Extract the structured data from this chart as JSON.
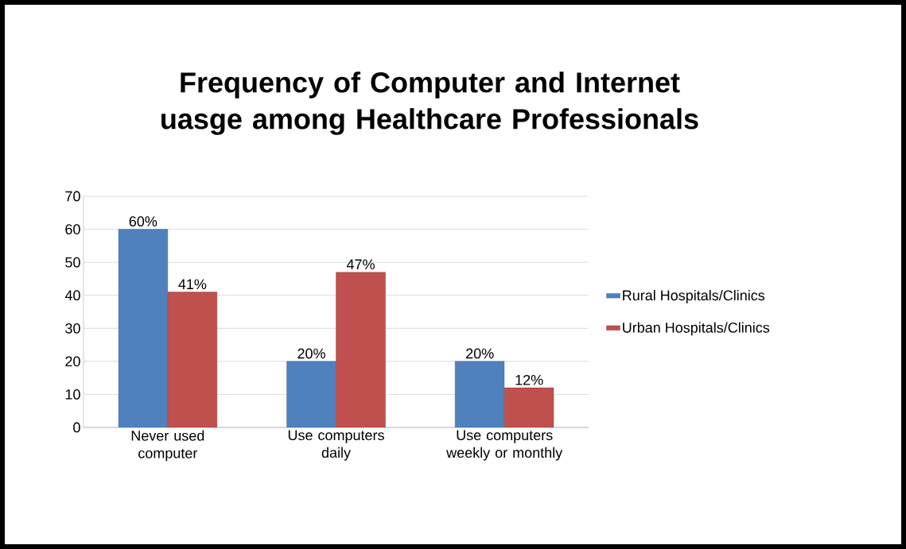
{
  "chart_data": {
    "type": "bar",
    "title": "Frequency of Computer and Internet uasge among Healthcare Professionals",
    "categories": [
      "Never used computer",
      "Use computers daily",
      "Use computers weekly or monthly"
    ],
    "series": [
      {
        "name": "Rural Hospitals/Clinics",
        "color": "#4f81bd",
        "values": [
          60,
          20,
          20
        ],
        "value_labels": [
          "60%",
          "20%",
          "20%"
        ]
      },
      {
        "name": "Urban Hospitals/Clinics",
        "color": "#c0504d",
        "values": [
          41,
          47,
          12
        ],
        "value_labels": [
          "41%",
          "47%",
          "12%"
        ]
      }
    ],
    "ylim": [
      0,
      70
    ],
    "yticks": [
      0,
      10,
      20,
      30,
      40,
      50,
      60,
      70
    ],
    "grid": "y",
    "legend": "right"
  }
}
